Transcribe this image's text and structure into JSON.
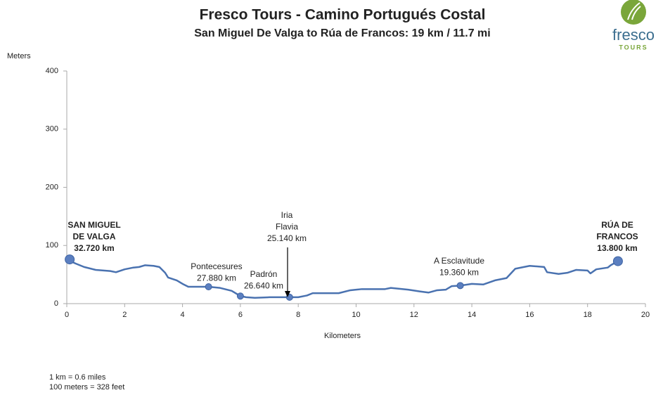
{
  "chart_data": {
    "type": "line",
    "title": "Fresco Tours - Camino Portugués Costal",
    "subtitle": "San Miguel De Valga to Rúa de Francos: 19 km / 11.7 mi",
    "y_label": "Meters",
    "x_label": "Kilometers",
    "xlim": [
      0,
      20
    ],
    "xticks": [
      0,
      2,
      4,
      6,
      8,
      10,
      12,
      14,
      16,
      18,
      20
    ],
    "ylim": [
      0,
      400
    ],
    "yticks": [
      0,
      100,
      200,
      300,
      400
    ],
    "grid": false,
    "series": [
      {
        "color": "#4a72b0",
        "x": [
          0,
          0.3,
          0.6,
          1,
          1.5,
          1.7,
          2,
          2.3,
          2.5,
          2.7,
          3,
          3.2,
          3.4,
          3.5,
          3.8,
          4,
          4.2,
          4.5,
          4.9,
          5.3,
          5.7,
          6,
          6.2,
          6.5,
          7,
          7.5,
          7.7,
          8,
          8.3,
          8.5,
          8.8,
          9.4,
          9.8,
          10.2,
          11,
          11.2,
          11.8,
          12.2,
          12.5,
          12.8,
          13.1,
          13.3,
          13.6,
          14,
          14.4,
          14.8,
          15.2,
          15.5,
          15.8,
          16,
          16.5,
          16.6,
          17,
          17.3,
          17.6,
          18,
          18.1,
          18.3,
          18.7,
          18.8,
          19.05
        ],
        "values": [
          76,
          69,
          63,
          58,
          56,
          54,
          59,
          62,
          63,
          66,
          65,
          63,
          53,
          45,
          40,
          34,
          29,
          29,
          29,
          27,
          22,
          13,
          11,
          10,
          11,
          11,
          11,
          11,
          14,
          18,
          18,
          18,
          23,
          25,
          25,
          27,
          24,
          21,
          19,
          23,
          24,
          30,
          31,
          34,
          33,
          40,
          44,
          60,
          63,
          65,
          63,
          54,
          51,
          53,
          58,
          57,
          52,
          59,
          62,
          66,
          73
        ]
      }
    ],
    "markers": {
      "color": "#5b7fc0",
      "x": [
        0.1,
        4.9,
        6.0,
        7.7,
        13.6,
        19.05
      ],
      "y": [
        76,
        29,
        13,
        11,
        31,
        73
      ]
    },
    "annotations": [
      [
        "SAN MIGUEL",
        "DE VALGA",
        "32.720 km"
      ],
      [
        "Pontecesures",
        "27.880 km"
      ],
      [
        "Padrón",
        "26.640 km"
      ],
      [
        "Iria",
        "Flavia",
        "25.140 km"
      ],
      [
        "A Esclavitude",
        "19.360 km"
      ],
      [
        "RÚA DE",
        "FRANCOS",
        "13.800 km"
      ]
    ],
    "notes": [
      "1 km = 0.6 miles",
      "100 meters = 328 feet"
    ],
    "logo": {
      "name": "fresco",
      "tag": "TOURS"
    }
  }
}
